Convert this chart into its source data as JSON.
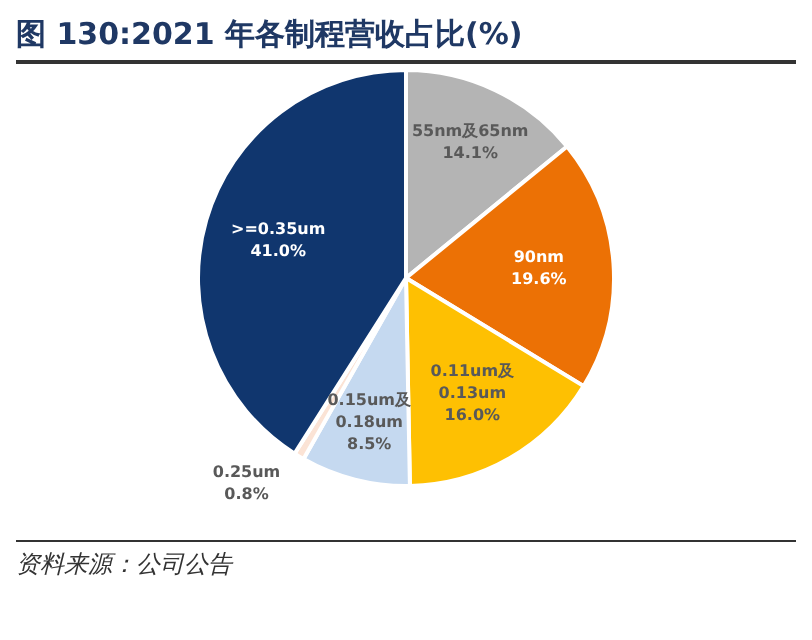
{
  "chart_data": {
    "type": "pie",
    "title": "图 130:2021 年各制程营收占比(%)",
    "categories": [
      "55nm及65nm",
      "90nm",
      "0.11um及0.13um",
      "0.15um及0.18um",
      "0.25um",
      ">=0.35um"
    ],
    "values": [
      14.1,
      19.6,
      16.0,
      8.5,
      0.8,
      41.0
    ],
    "value_labels": [
      "14.1%",
      "19.6%",
      "16.0%",
      "8.5%",
      "0.8%",
      "41.0%"
    ],
    "colors": [
      "#b4b4b4",
      "#ec7105",
      "#fec002",
      "#c5d9f0",
      "#fbe3d5",
      "#10366e"
    ],
    "legend": false,
    "annotations": [
      "资料来源：公司公告"
    ]
  }
}
